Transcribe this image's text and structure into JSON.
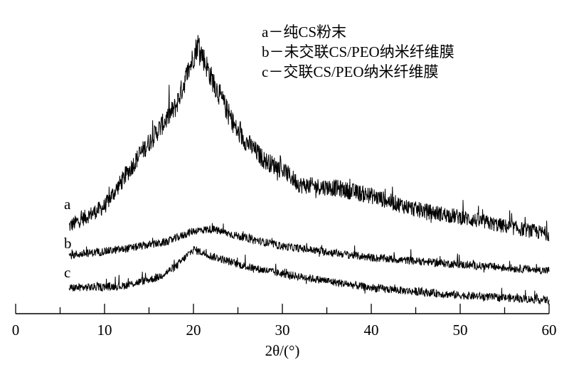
{
  "chart_data": {
    "type": "line",
    "title": "",
    "xlabel": "2θ/(°)",
    "ylabel": "",
    "xlim": [
      0,
      60
    ],
    "ylim": [
      0,
      100
    ],
    "x_ticks": [
      "0",
      "10",
      "20",
      "30",
      "40",
      "50",
      "60"
    ],
    "grid": false,
    "legend_position": "top-center",
    "legend": [
      "a－纯CS粉末",
      "b－未交联CS/PEO纳米纤维膜",
      "c－交联CS/PEO纳米纤维膜"
    ],
    "series": [
      {
        "name": "a",
        "label": "a",
        "x": [
          6,
          10,
          14,
          18,
          20.5,
          22,
          25,
          28,
          30,
          32,
          36,
          40,
          45,
          50,
          55,
          60
        ],
        "y": [
          28.5,
          35,
          52,
          67.5,
          88,
          77,
          59,
          50,
          47,
          42,
          41,
          38.5,
          34,
          31.5,
          28.5,
          26
        ]
      },
      {
        "name": "b",
        "label": "b",
        "x": [
          6,
          12,
          17,
          20,
          22,
          26,
          30,
          40,
          50,
          60
        ],
        "y": [
          19,
          21,
          23.4,
          27,
          27.6,
          24.6,
          22,
          18.3,
          16,
          14
        ]
      },
      {
        "name": "c",
        "label": "c",
        "x": [
          6,
          12,
          16,
          18,
          20,
          22,
          26,
          30,
          40,
          50,
          60
        ],
        "y": [
          8.4,
          9,
          11.8,
          15.3,
          21,
          18.8,
          15.3,
          13,
          8.4,
          6,
          4.4
        ]
      }
    ]
  }
}
